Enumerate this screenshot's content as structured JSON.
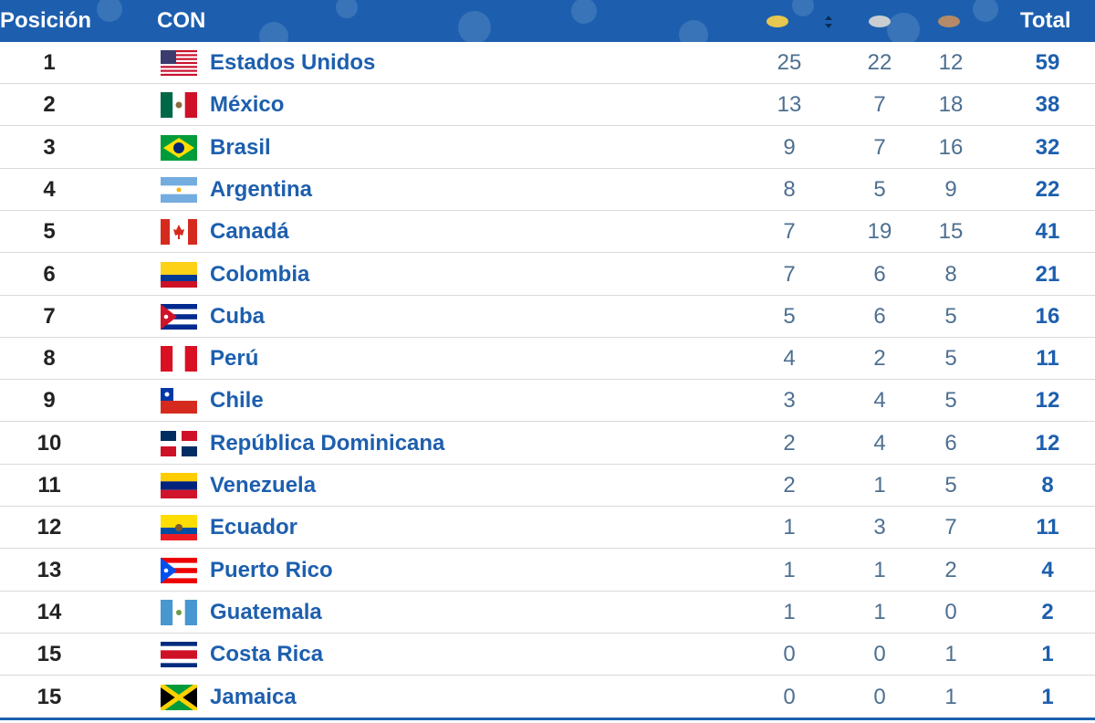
{
  "header": {
    "position_label": "Posición",
    "con_label": "CON",
    "total_label": "Total",
    "medal_icons": [
      "gold-medal-icon",
      "silver-medal-icon",
      "bronze-medal-icon"
    ],
    "sort_icon": "sort-icon",
    "colors": {
      "header_bg": "#1d5fae",
      "gold": "#e6c74f",
      "silver": "#c9cdd1",
      "bronze": "#b48a68"
    }
  },
  "rows": [
    {
      "pos": "1",
      "name": "Estados Unidos",
      "flag": "usa-flag-icon",
      "gold": "25",
      "silver": "22",
      "bronze": "12",
      "total": "59"
    },
    {
      "pos": "2",
      "name": "México",
      "flag": "mexico-flag-icon",
      "gold": "13",
      "silver": "7",
      "bronze": "18",
      "total": "38"
    },
    {
      "pos": "3",
      "name": "Brasil",
      "flag": "brazil-flag-icon",
      "gold": "9",
      "silver": "7",
      "bronze": "16",
      "total": "32"
    },
    {
      "pos": "4",
      "name": "Argentina",
      "flag": "argentina-flag-icon",
      "gold": "8",
      "silver": "5",
      "bronze": "9",
      "total": "22"
    },
    {
      "pos": "5",
      "name": "Canadá",
      "flag": "canada-flag-icon",
      "gold": "7",
      "silver": "19",
      "bronze": "15",
      "total": "41"
    },
    {
      "pos": "6",
      "name": "Colombia",
      "flag": "colombia-flag-icon",
      "gold": "7",
      "silver": "6",
      "bronze": "8",
      "total": "21"
    },
    {
      "pos": "7",
      "name": "Cuba",
      "flag": "cuba-flag-icon",
      "gold": "5",
      "silver": "6",
      "bronze": "5",
      "total": "16"
    },
    {
      "pos": "8",
      "name": "Perú",
      "flag": "peru-flag-icon",
      "gold": "4",
      "silver": "2",
      "bronze": "5",
      "total": "11"
    },
    {
      "pos": "9",
      "name": "Chile",
      "flag": "chile-flag-icon",
      "gold": "3",
      "silver": "4",
      "bronze": "5",
      "total": "12"
    },
    {
      "pos": "10",
      "name": "República Dominicana",
      "flag": "dominican-republic-flag-icon",
      "gold": "2",
      "silver": "4",
      "bronze": "6",
      "total": "12"
    },
    {
      "pos": "11",
      "name": "Venezuela",
      "flag": "venezuela-flag-icon",
      "gold": "2",
      "silver": "1",
      "bronze": "5",
      "total": "8"
    },
    {
      "pos": "12",
      "name": "Ecuador",
      "flag": "ecuador-flag-icon",
      "gold": "1",
      "silver": "3",
      "bronze": "7",
      "total": "11"
    },
    {
      "pos": "13",
      "name": "Puerto Rico",
      "flag": "puerto-rico-flag-icon",
      "gold": "1",
      "silver": "1",
      "bronze": "2",
      "total": "4"
    },
    {
      "pos": "14",
      "name": "Guatemala",
      "flag": "guatemala-flag-icon",
      "gold": "1",
      "silver": "1",
      "bronze": "0",
      "total": "2"
    },
    {
      "pos": "15",
      "name": "Costa Rica",
      "flag": "costa-rica-flag-icon",
      "gold": "0",
      "silver": "0",
      "bronze": "1",
      "total": "1"
    },
    {
      "pos": "15",
      "name": "Jamaica",
      "flag": "jamaica-flag-icon",
      "gold": "0",
      "silver": "0",
      "bronze": "1",
      "total": "1"
    }
  ]
}
